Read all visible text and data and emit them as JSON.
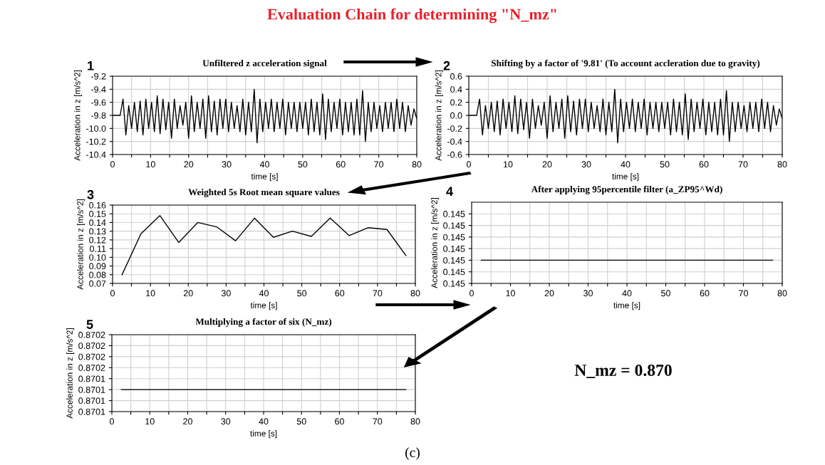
{
  "chart_data": [
    {
      "type": "line",
      "title": "Unfiltered z acceleration signal",
      "xlabel": "time [s]",
      "ylabel": "Acceleration in z [m/s^2]",
      "annotations": [
        "1"
      ],
      "series": [
        {
          "color": "#000000",
          "x": [
            0,
            2,
            2.75,
            3.5,
            4.25,
            5,
            5.75,
            6.5,
            7.25,
            8,
            8.75,
            9.5,
            10.25,
            11,
            11.75,
            12.5,
            13.25,
            14,
            14.75,
            15.5,
            16.25,
            17,
            17.75,
            18.5,
            19.25,
            20,
            20.75,
            21.5,
            22.25,
            23,
            23.75,
            24.5,
            25.25,
            26,
            26.75,
            27.5,
            28.25,
            29,
            29.75,
            30.5,
            31.25,
            32,
            32.75,
            33.5,
            34.25,
            35,
            35.75,
            36.5,
            37.25,
            38,
            38.75,
            39.5,
            40.25,
            41,
            41.75,
            42.5,
            43.25,
            44,
            44.75,
            45.5,
            46.25,
            47,
            47.75,
            48.5,
            49.25,
            50,
            50.75,
            51.5,
            52.25,
            53,
            53.75,
            54.5,
            55.25,
            56,
            56.75,
            57.5,
            58.25,
            59,
            59.75,
            60.5,
            61.25,
            62,
            62.75,
            63.5,
            64.25,
            65,
            65.75,
            66.5,
            67.25,
            68,
            68.75,
            69.5,
            70.25,
            71,
            71.75,
            72.5,
            73.25,
            74,
            74.75,
            75.5,
            76.25,
            77,
            77.75,
            78.5,
            79.25,
            80
          ],
          "values": [
            -9.8,
            -9.8,
            -9.55,
            -10.1,
            -9.65,
            -10.0,
            -9.6,
            -10.05,
            -9.58,
            -10.1,
            -9.55,
            -10.0,
            -9.6,
            -10.05,
            -9.5,
            -10.08,
            -9.55,
            -10.02,
            -9.6,
            -10.15,
            -9.55,
            -10.0,
            -9.65,
            -9.95,
            -9.6,
            -10.15,
            -9.5,
            -10.05,
            -9.6,
            -10.0,
            -9.55,
            -10.15,
            -9.5,
            -10.05,
            -9.58,
            -10.1,
            -9.55,
            -10.0,
            -9.55,
            -10.05,
            -9.6,
            -10.0,
            -9.65,
            -10.05,
            -9.55,
            -10.1,
            -9.6,
            -10.05,
            -9.4,
            -10.22,
            -9.55,
            -10.05,
            -9.6,
            -10.0,
            -9.55,
            -10.05,
            -9.6,
            -10.0,
            -9.55,
            -10.1,
            -9.6,
            -10.0,
            -9.6,
            -10.05,
            -9.6,
            -10.0,
            -9.6,
            -10.1,
            -9.55,
            -10.05,
            -9.6,
            -10.1,
            -9.47,
            -10.17,
            -9.55,
            -10.05,
            -9.6,
            -10.0,
            -9.55,
            -10.1,
            -9.6,
            -10.05,
            -9.6,
            -10.1,
            -9.55,
            -10.1,
            -9.42,
            -10.2,
            -9.6,
            -10.05,
            -9.6,
            -10.0,
            -9.65,
            -10.05,
            -9.6,
            -10.0,
            -9.6,
            -10.05,
            -9.55,
            -10.0,
            -9.6,
            -10.05,
            -9.65,
            -9.95,
            -9.7,
            -9.85
          ]
        }
      ],
      "xlim": [
        0,
        80
      ],
      "xticks": [
        0,
        {
          "value": 5,
          "label": null
        },
        10,
        {
          "value": 15,
          "label": null
        },
        20,
        {
          "value": 25,
          "label": null
        },
        30,
        {
          "value": 35,
          "label": null
        },
        40,
        {
          "value": 45,
          "label": null
        },
        50,
        {
          "value": 55,
          "label": null
        },
        60,
        {
          "value": 65,
          "label": null
        },
        70,
        {
          "value": 75,
          "label": null
        },
        80
      ],
      "ylim": [
        -10.4,
        -9.2
      ],
      "yticks": [
        -10.4,
        -10.2,
        {
          "value": -10,
          "label": "-10.0"
        },
        -9.8,
        -9.6,
        -9.4,
        -9.2
      ],
      "grid": true
    },
    {
      "type": "line",
      "title": "Shifting by a factor of '9.81' (To account accleration due to gravity)",
      "xlabel": "time [s]",
      "ylabel": "Acceleration in z [m/s^2]",
      "annotations": [
        "2"
      ],
      "series": [
        {
          "color": "#000000",
          "x": [
            0,
            2,
            2.75,
            3.5,
            4.25,
            5,
            5.75,
            6.5,
            7.25,
            8,
            8.75,
            9.5,
            10.25,
            11,
            11.75,
            12.5,
            13.25,
            14,
            14.75,
            15.5,
            16.25,
            17,
            17.75,
            18.5,
            19.25,
            20,
            20.75,
            21.5,
            22.25,
            23,
            23.75,
            24.5,
            25.25,
            26,
            26.75,
            27.5,
            28.25,
            29,
            29.75,
            30.5,
            31.25,
            32,
            32.75,
            33.5,
            34.25,
            35,
            35.75,
            36.5,
            37.25,
            38,
            38.75,
            39.5,
            40.25,
            41,
            41.75,
            42.5,
            43.25,
            44,
            44.75,
            45.5,
            46.25,
            47,
            47.75,
            48.5,
            49.25,
            50,
            50.75,
            51.5,
            52.25,
            53,
            53.75,
            54.5,
            55.25,
            56,
            56.75,
            57.5,
            58.25,
            59,
            59.75,
            60.5,
            61.25,
            62,
            62.75,
            63.5,
            64.25,
            65,
            65.75,
            66.5,
            67.25,
            68,
            68.75,
            69.5,
            70.25,
            71,
            71.75,
            72.5,
            73.25,
            74,
            74.75,
            75.5,
            76.25,
            77,
            77.75,
            78.5,
            79.25,
            80
          ],
          "values": [
            0.0,
            0.0,
            0.25,
            -0.3,
            0.15,
            -0.2,
            0.2,
            -0.25,
            0.22,
            -0.3,
            0.25,
            -0.2,
            0.2,
            -0.25,
            0.3,
            -0.28,
            0.25,
            -0.22,
            0.2,
            -0.35,
            0.25,
            -0.2,
            0.15,
            -0.15,
            0.2,
            -0.35,
            0.3,
            -0.25,
            0.2,
            -0.2,
            0.25,
            -0.35,
            0.3,
            -0.25,
            0.22,
            -0.3,
            0.25,
            -0.2,
            0.25,
            -0.25,
            0.2,
            -0.2,
            0.15,
            -0.25,
            0.25,
            -0.3,
            0.2,
            -0.25,
            0.4,
            -0.42,
            0.25,
            -0.25,
            0.2,
            -0.2,
            0.25,
            -0.25,
            0.2,
            -0.2,
            0.25,
            -0.3,
            0.2,
            -0.2,
            0.2,
            -0.25,
            0.2,
            -0.2,
            0.2,
            -0.3,
            0.25,
            -0.25,
            0.2,
            -0.3,
            0.33,
            -0.37,
            0.25,
            -0.25,
            0.2,
            -0.2,
            0.25,
            -0.3,
            0.2,
            -0.25,
            0.2,
            -0.3,
            0.25,
            -0.3,
            0.38,
            -0.4,
            0.2,
            -0.25,
            0.2,
            -0.2,
            0.15,
            -0.25,
            0.2,
            -0.2,
            0.2,
            -0.25,
            0.25,
            -0.2,
            0.2,
            -0.25,
            0.15,
            -0.15,
            0.1,
            -0.05
          ]
        }
      ],
      "xlim": [
        0,
        80
      ],
      "xticks": [
        0,
        {
          "value": 5,
          "label": null
        },
        10,
        {
          "value": 15,
          "label": null
        },
        20,
        {
          "value": 25,
          "label": null
        },
        30,
        {
          "value": 35,
          "label": null
        },
        40,
        {
          "value": 45,
          "label": null
        },
        50,
        {
          "value": 55,
          "label": null
        },
        60,
        {
          "value": 65,
          "label": null
        },
        70,
        {
          "value": 75,
          "label": null
        },
        80
      ],
      "ylim": [
        -0.6,
        0.6
      ],
      "yticks": [
        -0.6,
        -0.4,
        -0.2,
        {
          "value": 0,
          "label": "0.0"
        },
        0.2,
        0.4,
        0.6
      ],
      "grid": true
    },
    {
      "type": "line",
      "title": "Weighted 5s Root mean square values",
      "xlabel": "time [s]",
      "ylabel": "Acceleration in z [m/s^2]",
      "annotations": [
        "3"
      ],
      "series": [
        {
          "color": "#000000",
          "x": [
            2.5,
            7.5,
            12.5,
            17.5,
            22.5,
            27.5,
            32.5,
            37.5,
            42.5,
            47.5,
            52.5,
            57.5,
            62.5,
            67.5,
            72.5,
            77.5
          ],
          "values": [
            0.08,
            0.127,
            0.148,
            0.117,
            0.14,
            0.135,
            0.119,
            0.145,
            0.123,
            0.13,
            0.124,
            0.145,
            0.125,
            0.134,
            0.132,
            0.102
          ]
        }
      ],
      "xlim": [
        0,
        80
      ],
      "xticks": [
        0,
        {
          "value": 5,
          "label": null
        },
        10,
        {
          "value": 15,
          "label": null
        },
        20,
        {
          "value": 25,
          "label": null
        },
        30,
        {
          "value": 35,
          "label": null
        },
        40,
        {
          "value": 45,
          "label": null
        },
        50,
        {
          "value": 55,
          "label": null
        },
        60,
        {
          "value": 65,
          "label": null
        },
        70,
        {
          "value": 75,
          "label": null
        },
        80
      ],
      "ylim": [
        0.07,
        0.16
      ],
      "yticks": [
        0.07,
        0.08,
        0.09,
        {
          "value": 0.1,
          "label": "0.10"
        },
        0.11,
        0.12,
        0.13,
        0.14,
        0.15,
        0.16
      ],
      "grid": true
    },
    {
      "type": "line",
      "title": "After applying 95percentile filter (a_ZP95^Wd)",
      "xlabel": "time [s]",
      "ylabel": "Acceleration in z [m/s^2]",
      "annotations": [
        "4"
      ],
      "series": [
        {
          "color": "#000000",
          "x": [
            2.5,
            77.5
          ],
          "values": [
            0.14502,
            0.14502
          ]
        }
      ],
      "xlim": [
        0,
        80
      ],
      "xticks": [
        0,
        {
          "value": 5,
          "label": null
        },
        10,
        {
          "value": 15,
          "label": null
        },
        20,
        {
          "value": 25,
          "label": null
        },
        30,
        {
          "value": 35,
          "label": null
        },
        40,
        {
          "value": 45,
          "label": null
        },
        50,
        {
          "value": 55,
          "label": null
        },
        60,
        {
          "value": 65,
          "label": null
        },
        70,
        {
          "value": 75,
          "label": null
        },
        80
      ],
      "ylim": [
        0.145,
        0.14507
      ],
      "yticks": [
        {
          "value": 0.145,
          "label": "0.145"
        },
        {
          "value": 0.14501,
          "label": "0.145"
        },
        {
          "value": 0.14502,
          "label": "0.145"
        },
        {
          "value": 0.14503,
          "label": "0.145"
        },
        {
          "value": 0.14504,
          "label": "0.145"
        },
        {
          "value": 0.14505,
          "label": "0.145"
        },
        {
          "value": 0.14506,
          "label": "0.145"
        }
      ],
      "grid": true
    },
    {
      "type": "line",
      "title": "Multiplying a factor of six (N_mz)",
      "xlabel": "time [s]",
      "ylabel": "Acceleration in z [m/s^2]",
      "annotations": [
        "5"
      ],
      "series": [
        {
          "color": "#000000",
          "x": [
            2.5,
            77.5
          ],
          "values": [
            0.87013,
            0.87013
          ]
        }
      ],
      "xlim": [
        0,
        80
      ],
      "xticks": [
        0,
        {
          "value": 5,
          "label": null
        },
        10,
        {
          "value": 15,
          "label": null
        },
        20,
        {
          "value": 25,
          "label": null
        },
        30,
        {
          "value": 35,
          "label": null
        },
        40,
        {
          "value": 45,
          "label": null
        },
        50,
        {
          "value": 55,
          "label": null
        },
        60,
        {
          "value": 65,
          "label": null
        },
        70,
        {
          "value": 75,
          "label": null
        },
        80
      ],
      "ylim": [
        0.87011,
        0.87018
      ],
      "yticks": [
        {
          "value": 0.87011,
          "label": "0.8701"
        },
        {
          "value": 0.87012,
          "label": "0.8701"
        },
        {
          "value": 0.87013,
          "label": "0.8701"
        },
        {
          "value": 0.87014,
          "label": "0.8701"
        },
        {
          "value": 0.87015,
          "label": "0.8702"
        },
        {
          "value": 0.87016,
          "label": "0.8702"
        },
        {
          "value": 0.87017,
          "label": "0.8702"
        },
        {
          "value": 0.87018,
          "label": "0.8702"
        }
      ],
      "grid": true
    },
    {
      "type": "other",
      "title": "Evaluation Chain for determining \"N_mz\"",
      "annotations": [
        "N_mz = 0.870",
        "(c)"
      ]
    }
  ]
}
